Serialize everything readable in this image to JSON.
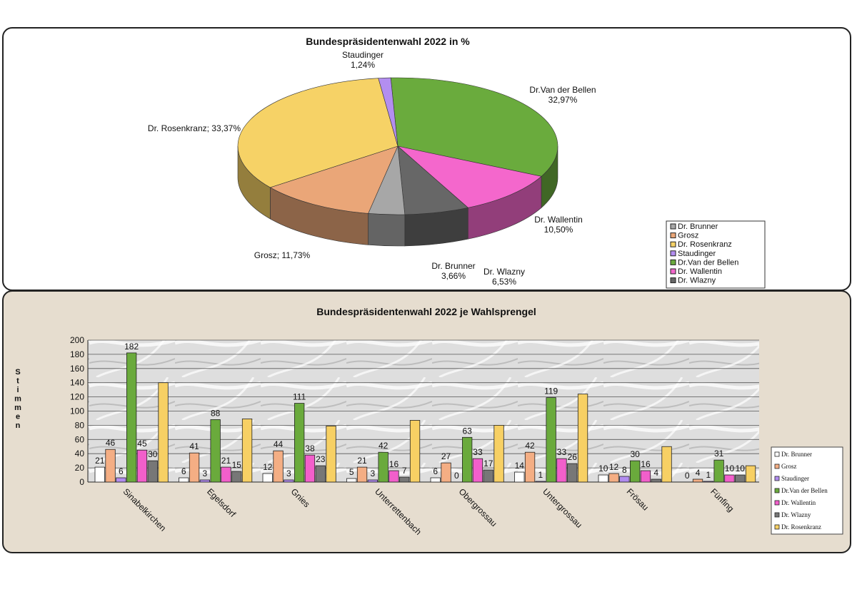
{
  "colors": {
    "Dr. Brunner": "#ffffff",
    "Grosz": "#f4ae84",
    "Dr. Rosenkranz": "#f7d064",
    "Staudinger": "#b18cf0",
    "Dr.Van der Bellen": "#6aaa3c",
    "Dr. Wallentin": "#f25fcb",
    "Dr. Wlazny": "#777777",
    "pie_dr_brunner": "#a7a7a7",
    "pie_wlazny": "#676767",
    "pie_grosz": "#eaa678",
    "pie_rosenkranz": "#f6d266",
    "pie_staudinger": "#b38ef0",
    "pie_vdb": "#6aab3d",
    "pie_wallentin": "#f467cc"
  },
  "chart_data": [
    {
      "type": "pie",
      "title": "Bundespräsidentenwahl 2022 in %",
      "slices": [
        {
          "name": "Dr.Van der Bellen",
          "value": 32.97,
          "label_name": "Dr.Van der Bellen",
          "label_value": "32,97%"
        },
        {
          "name": "Dr. Wallentin",
          "value": 10.5,
          "label_name": "Dr. Wallentin",
          "label_value": "10,50%"
        },
        {
          "name": "Dr. Wlazny",
          "value": 6.53,
          "label_name": "Dr. Wlazny",
          "label_value": "6,53%"
        },
        {
          "name": "Dr. Brunner",
          "value": 3.66,
          "label_name": "Dr. Brunner",
          "label_value": "3,66%"
        },
        {
          "name": "Grosz",
          "value": 11.73,
          "label_name": "Grosz; 11,73%",
          "label_value": ""
        },
        {
          "name": "Dr. Rosenkranz",
          "value": 33.37,
          "label_name": "Dr. Rosenkranz; 33,37%",
          "label_value": ""
        },
        {
          "name": "Staudinger",
          "value": 1.24,
          "label_name": "Staudinger",
          "label_value": "1,24%"
        }
      ],
      "legend": [
        "Dr. Brunner",
        "Grosz",
        "Dr. Rosenkranz",
        "Staudinger",
        "Dr.Van der Bellen",
        "Dr. Wallentin",
        "Dr. Wlazny"
      ],
      "legend_position": "bottom-right"
    },
    {
      "type": "bar",
      "title": "Bundespräsidentenwahl 2022 je Wahlsprengel",
      "ylabel": "Stimmen",
      "ylim": [
        0,
        200
      ],
      "yticks": [
        0,
        20,
        40,
        60,
        80,
        100,
        120,
        140,
        160,
        180,
        200
      ],
      "categories": [
        "Sinabelkirchen",
        "Egelsdorf",
        "Gnies",
        "Unterrettenbach",
        "Obergrossau",
        "Untergrossau",
        "Frösau",
        "Fünfing"
      ],
      "series": [
        {
          "name": "Dr. Brunner",
          "values": [
            21,
            6,
            12,
            5,
            6,
            14,
            10,
            0
          ],
          "labels": [
            "21",
            "6",
            "12",
            "5",
            "6",
            "14",
            "10",
            "0"
          ]
        },
        {
          "name": "Grosz",
          "values": [
            46,
            41,
            44,
            21,
            27,
            42,
            12,
            4
          ],
          "labels": [
            "46",
            "41",
            "44",
            "21",
            "27",
            "42",
            "12",
            "4"
          ]
        },
        {
          "name": "Staudinger",
          "values": [
            6,
            3,
            3,
            3,
            0,
            1,
            8,
            1
          ],
          "labels": [
            "6",
            "3",
            "3",
            "3",
            "0",
            "1",
            "8",
            "1"
          ]
        },
        {
          "name": "Dr.Van der Bellen",
          "values": [
            182,
            88,
            111,
            42,
            63,
            119,
            30,
            31
          ],
          "labels": [
            "182",
            "88",
            "111",
            "42",
            "63",
            "119",
            "30",
            "31"
          ]
        },
        {
          "name": "Dr. Wallentin",
          "values": [
            45,
            21,
            38,
            16,
            33,
            33,
            16,
            10
          ],
          "labels": [
            "45",
            "21",
            "38",
            "16",
            "33",
            "33",
            "16",
            "10"
          ]
        },
        {
          "name": "Dr. Wlazny",
          "values": [
            30,
            15,
            23,
            7,
            17,
            26,
            4,
            10
          ],
          "labels": [
            "30",
            "15",
            "23",
            "7",
            "17",
            "26",
            "4",
            "10"
          ]
        },
        {
          "name": "Dr. Rosenkranz",
          "values": [
            140,
            89,
            79,
            87,
            80,
            124,
            50,
            23
          ],
          "labels": [
            "",
            "",
            "",
            "",
            "",
            "",
            "",
            ""
          ]
        }
      ],
      "grid": true,
      "legend": [
        "Dr. Brunner",
        "Grosz",
        "Staudinger",
        "Dr.Van der Bellen",
        "Dr. Wallentin",
        "Dr. Wlazny",
        "Dr. Rosenkranz"
      ],
      "legend_position": "right"
    }
  ]
}
